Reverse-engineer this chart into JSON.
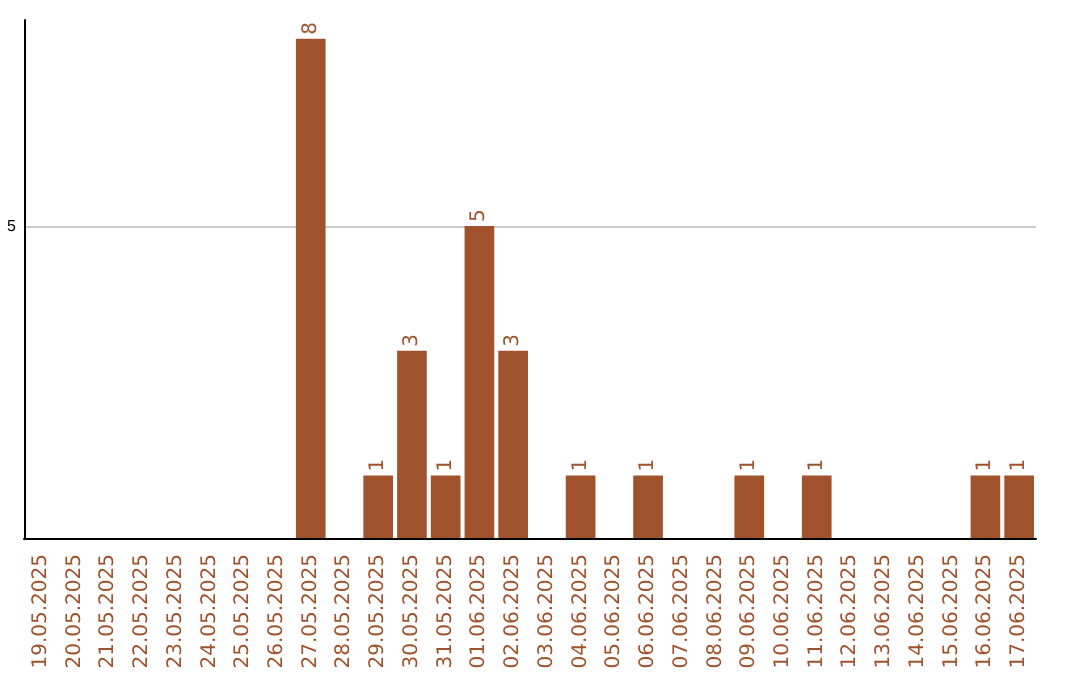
{
  "chart_data": {
    "type": "bar",
    "categories": [
      "19.05.2025",
      "20.05.2025",
      "21.05.2025",
      "22.05.2025",
      "23.05.2025",
      "24.05.2025",
      "25.05.2025",
      "26.05.2025",
      "27.05.2025",
      "28.05.2025",
      "29.05.2025",
      "30.05.2025",
      "31.05.2025",
      "01.06.2025",
      "02.06.2025",
      "03.06.2025",
      "04.06.2025",
      "05.06.2025",
      "06.06.2025",
      "07.06.2025",
      "08.06.2025",
      "09.06.2025",
      "10.06.2025",
      "11.06.2025",
      "12.06.2025",
      "13.06.2025",
      "14.06.2025",
      "15.06.2025",
      "16.06.2025",
      "17.06.2025"
    ],
    "values": [
      0,
      0,
      0,
      0,
      0,
      0,
      0,
      0,
      8,
      0,
      1,
      3,
      1,
      5,
      3,
      0,
      1,
      0,
      1,
      0,
      0,
      1,
      0,
      1,
      0,
      0,
      0,
      0,
      1,
      1
    ],
    "value_labels": [
      null,
      null,
      null,
      null,
      null,
      null,
      null,
      null,
      "8",
      null,
      "1",
      "3",
      "1",
      "5",
      "3",
      null,
      "1",
      null,
      "1",
      null,
      null,
      "1",
      null,
      "1",
      null,
      null,
      null,
      null,
      "1",
      "1"
    ],
    "color": "#a0522d",
    "ylim": [
      0,
      8.3
    ],
    "yticks": [
      5
    ],
    "grid": "y"
  }
}
